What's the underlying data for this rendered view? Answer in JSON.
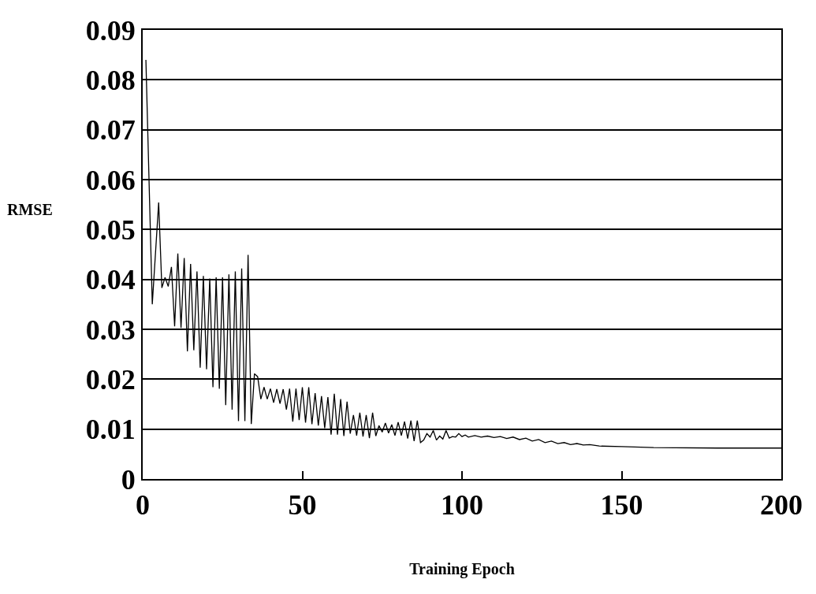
{
  "chart_data": {
    "type": "line",
    "xlabel": "Training Epoch",
    "ylabel": "RMSE",
    "x": [
      1,
      3,
      5,
      6,
      7,
      8,
      9,
      10,
      11,
      12,
      13,
      14,
      15,
      16,
      17,
      18,
      19,
      20,
      21,
      22,
      23,
      24,
      25,
      26,
      27,
      28,
      29,
      30,
      31,
      32,
      33,
      34,
      35,
      36,
      37,
      38,
      39,
      40,
      41,
      42,
      43,
      44,
      45,
      46,
      47,
      48,
      49,
      50,
      51,
      52,
      53,
      54,
      55,
      56,
      57,
      58,
      59,
      60,
      61,
      62,
      63,
      64,
      65,
      66,
      67,
      68,
      69,
      70,
      71,
      72,
      73,
      74,
      75,
      76,
      77,
      78,
      79,
      80,
      81,
      82,
      83,
      84,
      85,
      86,
      87,
      88,
      89,
      90,
      91,
      92,
      93,
      94,
      95,
      96,
      97,
      98,
      99,
      100,
      101,
      102,
      104,
      106,
      108,
      110,
      112,
      114,
      116,
      118,
      120,
      122,
      124,
      126,
      128,
      130,
      132,
      134,
      136,
      138,
      140,
      143,
      150,
      160,
      180,
      200
    ],
    "series": [
      {
        "color": "#000000",
        "values": [
          0.084,
          0.035,
          0.0554,
          0.0383,
          0.0404,
          0.0386,
          0.0425,
          0.0306,
          0.0452,
          0.0303,
          0.0443,
          0.0256,
          0.0431,
          0.0258,
          0.0416,
          0.0223,
          0.0407,
          0.022,
          0.0402,
          0.0184,
          0.0404,
          0.0181,
          0.0404,
          0.0148,
          0.041,
          0.0139,
          0.0416,
          0.0116,
          0.0422,
          0.0116,
          0.0449,
          0.011,
          0.0211,
          0.0205,
          0.016,
          0.0184,
          0.016,
          0.0181,
          0.0153,
          0.018,
          0.0151,
          0.018,
          0.0139,
          0.0181,
          0.0115,
          0.0181,
          0.0118,
          0.0184,
          0.0113,
          0.0184,
          0.011,
          0.0172,
          0.0107,
          0.0166,
          0.0102,
          0.0164,
          0.0089,
          0.0171,
          0.0089,
          0.016,
          0.0086,
          0.0155,
          0.0091,
          0.0128,
          0.0087,
          0.0133,
          0.0085,
          0.0128,
          0.0082,
          0.0133,
          0.0086,
          0.0107,
          0.0094,
          0.0112,
          0.0092,
          0.0109,
          0.0087,
          0.0114,
          0.0087,
          0.0115,
          0.0081,
          0.0117,
          0.0076,
          0.0117,
          0.0073,
          0.0078,
          0.0091,
          0.0084,
          0.0097,
          0.0078,
          0.0086,
          0.008,
          0.0097,
          0.0082,
          0.0085,
          0.0084,
          0.0091,
          0.0085,
          0.0088,
          0.0084,
          0.0087,
          0.0084,
          0.0086,
          0.0083,
          0.0085,
          0.0081,
          0.0084,
          0.0079,
          0.0082,
          0.0076,
          0.0079,
          0.0073,
          0.0076,
          0.0071,
          0.0073,
          0.0069,
          0.0071,
          0.0068,
          0.0069,
          0.0066,
          0.0065,
          0.0063,
          0.0062,
          0.0062
        ]
      }
    ],
    "xlim": [
      0,
      200
    ],
    "xticks": [
      0,
      50,
      100,
      150,
      200
    ],
    "ylim": [
      0,
      0.09
    ],
    "yticks": [
      0,
      0.01,
      0.02,
      0.03,
      0.04,
      0.05,
      0.06,
      0.07,
      0.08,
      0.09
    ],
    "grid": "y",
    "marker": "none",
    "line_style": "solid"
  }
}
